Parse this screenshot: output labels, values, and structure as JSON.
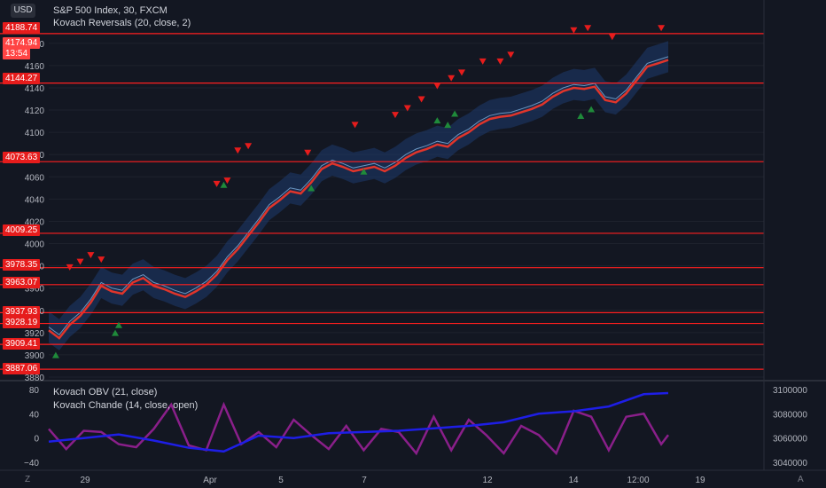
{
  "header": {
    "currency_button": "USD",
    "symbol_title": "S&P 500 Index, 30, FXCM",
    "indicator_main": "Kovach Reversals (20, close, 2)",
    "indicator_osc_1": "Kovach OBV (21, close)",
    "indicator_osc_2": "Kovach Chande (14, close, open)"
  },
  "price_scale": {
    "ticks": [
      "4180",
      "4160",
      "4140",
      "4120",
      "4100",
      "4080",
      "4060",
      "4040",
      "4020",
      "4000",
      "3980",
      "3960",
      "3940",
      "3920",
      "3900",
      "3880"
    ],
    "current_price": "4174.94",
    "countdown": "13:54"
  },
  "levels": [
    "4188.74",
    "4144.27",
    "4073.63",
    "4009.25",
    "3978.35",
    "3963.07",
    "3937.93",
    "3928.19",
    "3909.41",
    "3887.06"
  ],
  "osc_left_ticks": [
    "80",
    "40",
    "0",
    "−40"
  ],
  "osc_right_ticks": [
    "3100000",
    "3080000",
    "3060000",
    "3040000"
  ],
  "time_axis": [
    "29",
    "Apr",
    "5",
    "7",
    "12",
    "14",
    "12:00",
    "19"
  ],
  "bottom_buttons": {
    "zoom": "Z",
    "auto": "A"
  },
  "colors": {
    "background": "#131722",
    "level_line": "#ff1f1f",
    "price_line": "#e0352b",
    "band": "#1e3a6e",
    "obv": "#1e1ee6",
    "chande": "#8a1f8a",
    "buy": "#1f8a3a",
    "sell": "#e61c1c"
  },
  "chart_data": {
    "type": "line",
    "price": [
      [
        0,
        3925
      ],
      [
        6,
        3918
      ],
      [
        12,
        3930
      ],
      [
        18,
        3938
      ],
      [
        24,
        3950
      ],
      [
        30,
        3965
      ],
      [
        36,
        3960
      ],
      [
        42,
        3958
      ],
      [
        48,
        3968
      ],
      [
        54,
        3972
      ],
      [
        60,
        3965
      ],
      [
        66,
        3962
      ],
      [
        72,
        3958
      ],
      [
        78,
        3955
      ],
      [
        84,
        3960
      ],
      [
        90,
        3966
      ],
      [
        96,
        3975
      ],
      [
        102,
        3988
      ],
      [
        108,
        3998
      ],
      [
        114,
        4010
      ],
      [
        120,
        4022
      ],
      [
        126,
        4035
      ],
      [
        132,
        4042
      ],
      [
        138,
        4050
      ],
      [
        144,
        4048
      ],
      [
        150,
        4058
      ],
      [
        156,
        4070
      ],
      [
        162,
        4075
      ],
      [
        168,
        4072
      ],
      [
        174,
        4068
      ],
      [
        180,
        4070
      ],
      [
        186,
        4072
      ],
      [
        192,
        4068
      ],
      [
        198,
        4073
      ],
      [
        204,
        4080
      ],
      [
        210,
        4085
      ],
      [
        216,
        4088
      ],
      [
        222,
        4092
      ],
      [
        228,
        4090
      ],
      [
        234,
        4098
      ],
      [
        240,
        4103
      ],
      [
        246,
        4110
      ],
      [
        252,
        4115
      ],
      [
        258,
        4117
      ],
      [
        264,
        4118
      ],
      [
        270,
        4121
      ],
      [
        276,
        4124
      ],
      [
        282,
        4128
      ],
      [
        288,
        4135
      ],
      [
        294,
        4140
      ],
      [
        300,
        4143
      ],
      [
        306,
        4142
      ],
      [
        312,
        4144
      ],
      [
        318,
        4132
      ],
      [
        324,
        4130
      ],
      [
        330,
        4138
      ],
      [
        336,
        4150
      ],
      [
        342,
        4162
      ],
      [
        348,
        4165
      ],
      [
        354,
        4168
      ]
    ],
    "obv": [
      [
        0,
        3057000
      ],
      [
        20,
        3060000
      ],
      [
        40,
        3063000
      ],
      [
        60,
        3058000
      ],
      [
        80,
        3052000
      ],
      [
        100,
        3049000
      ],
      [
        120,
        3062000
      ],
      [
        140,
        3060000
      ],
      [
        160,
        3064000
      ],
      [
        180,
        3065000
      ],
      [
        200,
        3066000
      ],
      [
        220,
        3068000
      ],
      [
        240,
        3070000
      ],
      [
        260,
        3073000
      ],
      [
        280,
        3080000
      ],
      [
        300,
        3082000
      ],
      [
        320,
        3086000
      ],
      [
        340,
        3096000
      ],
      [
        354,
        3097000
      ]
    ],
    "chande": [
      [
        0,
        15
      ],
      [
        10,
        -18
      ],
      [
        20,
        12
      ],
      [
        30,
        10
      ],
      [
        40,
        -10
      ],
      [
        50,
        -15
      ],
      [
        60,
        15
      ],
      [
        70,
        55
      ],
      [
        80,
        -12
      ],
      [
        90,
        -20
      ],
      [
        100,
        55
      ],
      [
        110,
        -10
      ],
      [
        120,
        10
      ],
      [
        130,
        -15
      ],
      [
        140,
        30
      ],
      [
        150,
        5
      ],
      [
        160,
        -18
      ],
      [
        170,
        20
      ],
      [
        180,
        -20
      ],
      [
        190,
        15
      ],
      [
        200,
        10
      ],
      [
        210,
        -25
      ],
      [
        220,
        35
      ],
      [
        230,
        -20
      ],
      [
        240,
        30
      ],
      [
        250,
        5
      ],
      [
        260,
        -25
      ],
      [
        270,
        20
      ],
      [
        280,
        5
      ],
      [
        290,
        -25
      ],
      [
        300,
        45
      ],
      [
        310,
        35
      ],
      [
        320,
        -20
      ],
      [
        330,
        35
      ],
      [
        340,
        40
      ],
      [
        350,
        -10
      ],
      [
        354,
        5
      ]
    ],
    "sell_signals": [
      [
        12,
        3975
      ],
      [
        18,
        3980
      ],
      [
        24,
        3986
      ],
      [
        30,
        3982
      ],
      [
        96,
        4050
      ],
      [
        102,
        4053
      ],
      [
        108,
        4080
      ],
      [
        114,
        4084
      ],
      [
        148,
        4078
      ],
      [
        175,
        4103
      ],
      [
        198,
        4112
      ],
      [
        205,
        4118
      ],
      [
        213,
        4126
      ],
      [
        222,
        4138
      ],
      [
        230,
        4145
      ],
      [
        236,
        4150
      ],
      [
        248,
        4160
      ],
      [
        258,
        4160
      ],
      [
        264,
        4166
      ],
      [
        300,
        4188
      ],
      [
        308,
        4190
      ],
      [
        322,
        4182
      ],
      [
        350,
        4190
      ]
    ],
    "buy_signals": [
      [
        4,
        3905
      ],
      [
        38,
        3925
      ],
      [
        40,
        3932
      ],
      [
        100,
        4058
      ],
      [
        150,
        4055
      ],
      [
        180,
        4070
      ],
      [
        222,
        4116
      ],
      [
        228,
        4112
      ],
      [
        232,
        4122
      ],
      [
        304,
        4120
      ],
      [
        310,
        4126
      ]
    ],
    "ylim": [
      3880,
      4195
    ]
  }
}
